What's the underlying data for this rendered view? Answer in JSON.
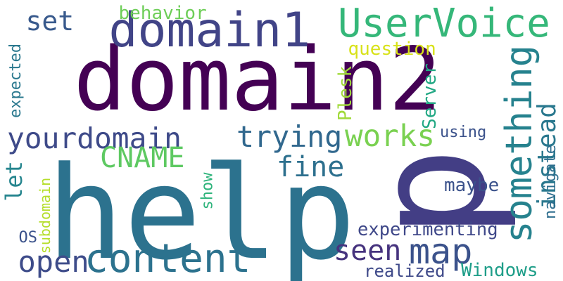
{
  "words": [
    {
      "text": "domain2",
      "color": "#440154",
      "rotate": false
    },
    {
      "text": "help",
      "color": "#2c728e",
      "rotate": false
    },
    {
      "text": "p",
      "color": "#433e85",
      "rotate": true
    },
    {
      "text": "domain1",
      "color": "#414487",
      "rotate": false
    },
    {
      "text": "UserVoice",
      "color": "#35b779",
      "rotate": false
    },
    {
      "text": "content",
      "color": "#2c728e",
      "rotate": false
    },
    {
      "text": "something",
      "color": "#26828e",
      "rotate": true
    },
    {
      "text": "map",
      "color": "#3b528b",
      "rotate": false
    },
    {
      "text": "instead",
      "color": "#2a788e",
      "rotate": true
    },
    {
      "text": "yourdomain",
      "color": "#3e4a89",
      "rotate": false
    },
    {
      "text": "trying",
      "color": "#31688e",
      "rotate": false
    },
    {
      "text": "works",
      "color": "#7ad151",
      "rotate": false
    },
    {
      "text": "CNAME",
      "color": "#5ec962",
      "rotate": false
    },
    {
      "text": "fine",
      "color": "#2d708e",
      "rotate": false
    },
    {
      "text": "open",
      "color": "#3e4c8a",
      "rotate": false
    },
    {
      "text": "seen",
      "color": "#46337e",
      "rotate": false
    },
    {
      "text": "set",
      "color": "#38598c",
      "rotate": false
    },
    {
      "text": "let",
      "color": "#25858e",
      "rotate": true
    },
    {
      "text": "Plesk",
      "color": "#a0da39",
      "rotate": true
    },
    {
      "text": "Server",
      "color": "#22a884",
      "rotate": true
    },
    {
      "text": "experimenting",
      "color": "#3f4889",
      "rotate": false
    },
    {
      "text": "Windows",
      "color": "#1f9e89",
      "rotate": false
    },
    {
      "text": "realized",
      "color": "#3e4989",
      "rotate": false
    },
    {
      "text": "behavior",
      "color": "#6ece58",
      "rotate": false
    },
    {
      "text": "question",
      "color": "#d8e219",
      "rotate": false
    },
    {
      "text": "expected",
      "color": "#2a788e",
      "rotate": true
    },
    {
      "text": "navigate",
      "color": "#2e6e8e",
      "rotate": true
    },
    {
      "text": "using",
      "color": "#3b528b",
      "rotate": false
    },
    {
      "text": "maybe",
      "color": "#3b528b",
      "rotate": false
    },
    {
      "text": "show",
      "color": "#2fb47c",
      "rotate": true
    },
    {
      "text": "subdomain",
      "color": "#b5de2b",
      "rotate": true
    },
    {
      "text": "OS",
      "color": "#3b528b",
      "rotate": false
    }
  ]
}
